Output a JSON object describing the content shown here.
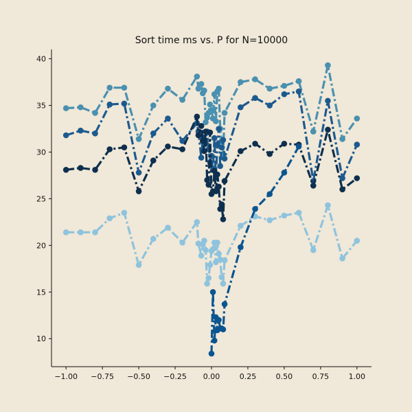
{
  "chart_data": {
    "type": "line",
    "title": "Sort time ms vs. P for N=10000",
    "xlabel": "",
    "ylabel": "",
    "xlim": [
      -1.1,
      1.1
    ],
    "ylim": [
      7,
      41
    ],
    "xticks": [
      -1.0,
      -0.75,
      -0.5,
      -0.25,
      0.0,
      0.25,
      0.5,
      0.75,
      1.0
    ],
    "xtick_labels": [
      "−1.00",
      "−0.75",
      "−0.50",
      "−0.25",
      "0.00",
      "0.25",
      "0.50",
      "0.75",
      "1.00"
    ],
    "yticks": [
      10,
      15,
      20,
      25,
      30,
      35,
      40
    ],
    "ytick_labels": [
      "10",
      "15",
      "20",
      "25",
      "30",
      "35",
      "40"
    ],
    "grid": false,
    "series": [
      {
        "color": "#4a90b0",
        "points": [
          [
            -1.0,
            34.7
          ],
          [
            -0.9,
            34.8
          ],
          [
            -0.8,
            34.2
          ],
          [
            -0.7,
            36.9
          ],
          [
            -0.6,
            36.9
          ],
          [
            -0.5,
            31.4
          ],
          [
            -0.4,
            35.0
          ],
          [
            -0.3,
            36.8
          ],
          [
            -0.2,
            35.6
          ],
          [
            -0.1,
            38.1
          ],
          [
            -0.09,
            36.8
          ],
          [
            -0.07,
            37.3
          ],
          [
            -0.06,
            36.3
          ],
          [
            -0.05,
            36.6
          ],
          [
            -0.04,
            33.2
          ],
          [
            -0.03,
            33.7
          ],
          [
            -0.02,
            34.2
          ],
          [
            -0.01,
            35.1
          ],
          [
            0.0,
            34.5
          ],
          [
            0.01,
            33.6
          ],
          [
            0.02,
            36.2
          ],
          [
            0.03,
            33.3
          ],
          [
            0.04,
            36.5
          ],
          [
            0.05,
            36.8
          ],
          [
            0.06,
            32.5
          ],
          [
            0.07,
            31.2
          ],
          [
            0.08,
            29.8
          ],
          [
            0.09,
            34.2
          ],
          [
            0.2,
            37.5
          ],
          [
            0.3,
            37.8
          ],
          [
            0.4,
            36.8
          ],
          [
            0.5,
            37.1
          ],
          [
            0.6,
            37.6
          ],
          [
            0.7,
            32.2
          ],
          [
            0.8,
            39.3
          ],
          [
            0.9,
            31.4
          ],
          [
            1.0,
            33.6
          ]
        ]
      },
      {
        "color": "#1c5a8e",
        "points": [
          [
            -1.0,
            31.8
          ],
          [
            -0.9,
            32.3
          ],
          [
            -0.8,
            32.0
          ],
          [
            -0.7,
            35.1
          ],
          [
            -0.6,
            35.2
          ],
          [
            -0.5,
            27.8
          ],
          [
            -0.4,
            32.0
          ],
          [
            -0.3,
            33.6
          ],
          [
            -0.2,
            31.2
          ],
          [
            -0.1,
            33.1
          ],
          [
            -0.09,
            32.2
          ],
          [
            -0.07,
            29.4
          ],
          [
            -0.06,
            31.6
          ],
          [
            -0.05,
            30.8
          ],
          [
            -0.04,
            31.2
          ],
          [
            -0.03,
            32.2
          ],
          [
            -0.02,
            30.3
          ],
          [
            -0.01,
            28.9
          ],
          [
            0.0,
            29.6
          ],
          [
            0.01,
            28.1
          ],
          [
            0.02,
            31.5
          ],
          [
            0.03,
            27.2
          ],
          [
            0.04,
            30.8
          ],
          [
            0.05,
            32.5
          ],
          [
            0.06,
            28.5
          ],
          [
            0.07,
            30.5
          ],
          [
            0.08,
            31.3
          ],
          [
            0.09,
            29.3
          ],
          [
            0.2,
            34.8
          ],
          [
            0.3,
            35.8
          ],
          [
            0.4,
            35.0
          ],
          [
            0.5,
            36.2
          ],
          [
            0.6,
            36.5
          ],
          [
            0.7,
            26.9
          ],
          [
            0.8,
            35.5
          ],
          [
            0.9,
            27.2
          ],
          [
            1.0,
            30.8
          ]
        ]
      },
      {
        "color": "#0e2f4e",
        "points": [
          [
            -1.0,
            28.1
          ],
          [
            -0.9,
            28.3
          ],
          [
            -0.8,
            28.1
          ],
          [
            -0.7,
            30.3
          ],
          [
            -0.6,
            30.5
          ],
          [
            -0.5,
            25.8
          ],
          [
            -0.4,
            29.1
          ],
          [
            -0.3,
            30.6
          ],
          [
            -0.2,
            30.3
          ],
          [
            -0.1,
            33.8
          ],
          [
            -0.09,
            31.8
          ],
          [
            -0.07,
            32.8
          ],
          [
            -0.06,
            31.2
          ],
          [
            -0.05,
            30.1
          ],
          [
            -0.04,
            32.2
          ],
          [
            -0.03,
            27.0
          ],
          [
            -0.02,
            26.5
          ],
          [
            -0.01,
            32.1
          ],
          [
            0.0,
            25.5
          ],
          [
            0.01,
            25.8
          ],
          [
            0.02,
            28.0
          ],
          [
            0.03,
            25.8
          ],
          [
            0.04,
            27.6
          ],
          [
            0.05,
            26.3
          ],
          [
            0.06,
            23.9
          ],
          [
            0.07,
            24.4
          ],
          [
            0.08,
            22.8
          ],
          [
            0.09,
            26.9
          ],
          [
            0.2,
            30.1
          ],
          [
            0.3,
            30.9
          ],
          [
            0.4,
            29.8
          ],
          [
            0.5,
            30.9
          ],
          [
            0.6,
            30.8
          ],
          [
            0.7,
            26.4
          ],
          [
            0.8,
            32.4
          ],
          [
            0.9,
            26.0
          ],
          [
            1.0,
            27.2
          ]
        ]
      },
      {
        "color": "#8ec3dd",
        "points": [
          [
            -1.0,
            21.4
          ],
          [
            -0.9,
            21.4
          ],
          [
            -0.8,
            21.4
          ],
          [
            -0.7,
            22.9
          ],
          [
            -0.6,
            23.5
          ],
          [
            -0.5,
            17.9
          ],
          [
            -0.4,
            20.7
          ],
          [
            -0.3,
            21.9
          ],
          [
            -0.2,
            20.3
          ],
          [
            -0.1,
            22.5
          ],
          [
            -0.09,
            20.2
          ],
          [
            -0.07,
            18.9
          ],
          [
            -0.06,
            20.1
          ],
          [
            -0.05,
            20.5
          ],
          [
            -0.04,
            19.5
          ],
          [
            -0.03,
            15.9
          ],
          [
            -0.02,
            16.5
          ],
          [
            -0.01,
            17.9
          ],
          [
            0.0,
            19.4
          ],
          [
            0.01,
            19.6
          ],
          [
            0.02,
            20.3
          ],
          [
            0.03,
            18.2
          ],
          [
            0.04,
            20.3
          ],
          [
            0.05,
            19.1
          ],
          [
            0.06,
            18.5
          ],
          [
            0.07,
            16.6
          ],
          [
            0.08,
            15.9
          ],
          [
            0.09,
            18.4
          ],
          [
            0.2,
            22.1
          ],
          [
            0.3,
            23.1
          ],
          [
            0.4,
            22.7
          ],
          [
            0.5,
            23.2
          ],
          [
            0.6,
            23.5
          ],
          [
            0.7,
            19.5
          ],
          [
            0.8,
            24.3
          ],
          [
            0.9,
            18.6
          ],
          [
            1.0,
            20.5
          ]
        ]
      },
      {
        "color": "#0a5590",
        "points": [
          [
            0.0,
            8.4
          ],
          [
            0.01,
            15.0
          ],
          [
            0.02,
            9.8
          ],
          [
            0.03,
            12.3
          ],
          [
            0.04,
            10.9
          ],
          [
            0.05,
            12.0
          ],
          [
            0.06,
            11.1
          ],
          [
            0.07,
            11.1
          ],
          [
            0.08,
            11.0
          ],
          [
            0.09,
            13.7
          ],
          [
            0.2,
            19.8
          ],
          [
            0.3,
            23.9
          ],
          [
            0.4,
            25.5
          ],
          [
            0.5,
            27.8
          ],
          [
            0.6,
            30.6
          ]
        ]
      }
    ]
  }
}
